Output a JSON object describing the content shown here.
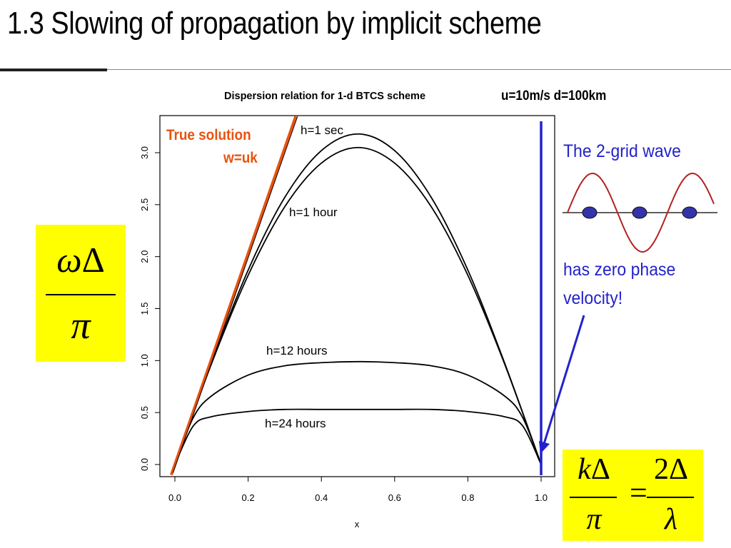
{
  "slide": {
    "title": "1.3 Slowing of propagation by implicit scheme",
    "params": "u=10m/s d=100km"
  },
  "lhs": {
    "num_a": "ω",
    "num_b": "Δ",
    "den": "π"
  },
  "rhs": {
    "k": "k",
    "delta": "Δ",
    "pi": "π",
    "eq": "=",
    "two_delta": "2Δ",
    "lambda": "λ"
  },
  "annotations": {
    "true_solution_line1": "True solution",
    "true_solution_line2": "w=uk",
    "two_grid_wave": "The 2-grid wave",
    "zero_phase_line1": "has zero phase",
    "zero_phase_line2": "velocity!"
  },
  "colors": {
    "true_solution": "#e8530e",
    "blue_annotation": "#2222cc",
    "wave": "#b22222",
    "dots": "#3333aa",
    "highlight": "#ffff00"
  },
  "chart_data": {
    "type": "line",
    "title": "Dispersion relation for 1-d BTCS scheme",
    "xlabel": "x",
    "ylabel": "",
    "xlim": [
      0.0,
      1.0
    ],
    "ylim": [
      0.0,
      3.2
    ],
    "x_ticks": [
      "0.0",
      "0.2",
      "0.4",
      "0.6",
      "0.8",
      "1.0"
    ],
    "y_ticks": [
      "0.0",
      "0.5",
      "1.0",
      "1.5",
      "2.0",
      "2.5",
      "3.0"
    ],
    "series": [
      {
        "name": "h=1 sec",
        "x": [
          0.0,
          0.1,
          0.2,
          0.3,
          0.4,
          0.5,
          0.6,
          0.7,
          0.8,
          0.9,
          1.0
        ],
        "y": [
          0.0,
          0.98,
          1.87,
          2.57,
          3.02,
          3.18,
          3.02,
          2.57,
          1.87,
          0.98,
          0.0
        ]
      },
      {
        "name": "h=1 hour",
        "x": [
          0.0,
          0.1,
          0.2,
          0.3,
          0.4,
          0.5,
          0.6,
          0.7,
          0.8,
          0.9,
          1.0
        ],
        "y": [
          0.0,
          0.97,
          1.82,
          2.48,
          2.9,
          3.05,
          2.9,
          2.48,
          1.82,
          0.97,
          0.0
        ]
      },
      {
        "name": "h=12 hours",
        "x": [
          0.0,
          0.05,
          0.1,
          0.2,
          0.3,
          0.4,
          0.5,
          0.6,
          0.7,
          0.8,
          0.9,
          0.95,
          1.0
        ],
        "y": [
          0.0,
          0.45,
          0.66,
          0.86,
          0.95,
          0.98,
          0.99,
          0.98,
          0.95,
          0.86,
          0.66,
          0.45,
          0.0
        ]
      },
      {
        "name": "h=24 hours",
        "x": [
          0.0,
          0.05,
          0.1,
          0.2,
          0.3,
          0.4,
          0.5,
          0.6,
          0.7,
          0.8,
          0.9,
          0.95,
          1.0
        ],
        "y": [
          0.0,
          0.37,
          0.46,
          0.51,
          0.53,
          0.53,
          0.53,
          0.53,
          0.53,
          0.51,
          0.46,
          0.37,
          0.0
        ]
      },
      {
        "name": "True solution w=uk",
        "x": [
          -0.01,
          0.33
        ],
        "y": [
          -0.1,
          3.35
        ]
      }
    ],
    "vertical_line_x": 1.0
  }
}
